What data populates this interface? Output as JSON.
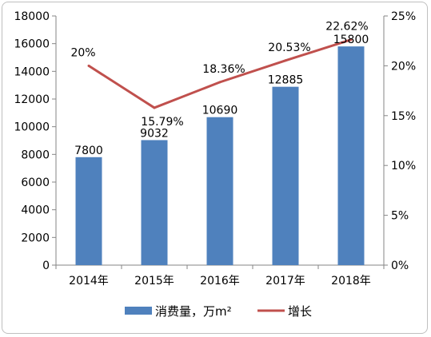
{
  "chart_data": {
    "type": "bar+line",
    "categories": [
      "2014年",
      "2015年",
      "2016年",
      "2017年",
      "2018年"
    ],
    "series": [
      {
        "name": "消费量，万m²",
        "type": "bar",
        "axis": "left",
        "values": [
          7800,
          9032,
          10690,
          12885,
          15800
        ],
        "labels": [
          "7800",
          "9032",
          "10690",
          "12885",
          "15800"
        ],
        "color": "#4F81BD"
      },
      {
        "name": "增长",
        "type": "line",
        "axis": "right",
        "values": [
          20,
          15.79,
          18.36,
          20.53,
          22.62
        ],
        "labels": [
          "20%",
          "15.79%",
          "18.36%",
          "20.53%",
          "22.62%"
        ],
        "color": "#C0504D"
      }
    ],
    "y_left": {
      "min": 0,
      "max": 18000,
      "ticks": [
        0,
        2000,
        4000,
        6000,
        8000,
        10000,
        12000,
        14000,
        16000,
        18000
      ],
      "tick_labels": [
        "0",
        "2000",
        "4000",
        "6000",
        "8000",
        "10000",
        "12000",
        "14000",
        "16000",
        "18000"
      ]
    },
    "y_right": {
      "min": 0,
      "max": 25,
      "ticks": [
        0,
        5,
        10,
        15,
        20,
        25
      ],
      "tick_labels": [
        "0%",
        "5%",
        "10%",
        "15%",
        "20%",
        "25%"
      ]
    },
    "grid": false,
    "legend_position": "bottom"
  }
}
